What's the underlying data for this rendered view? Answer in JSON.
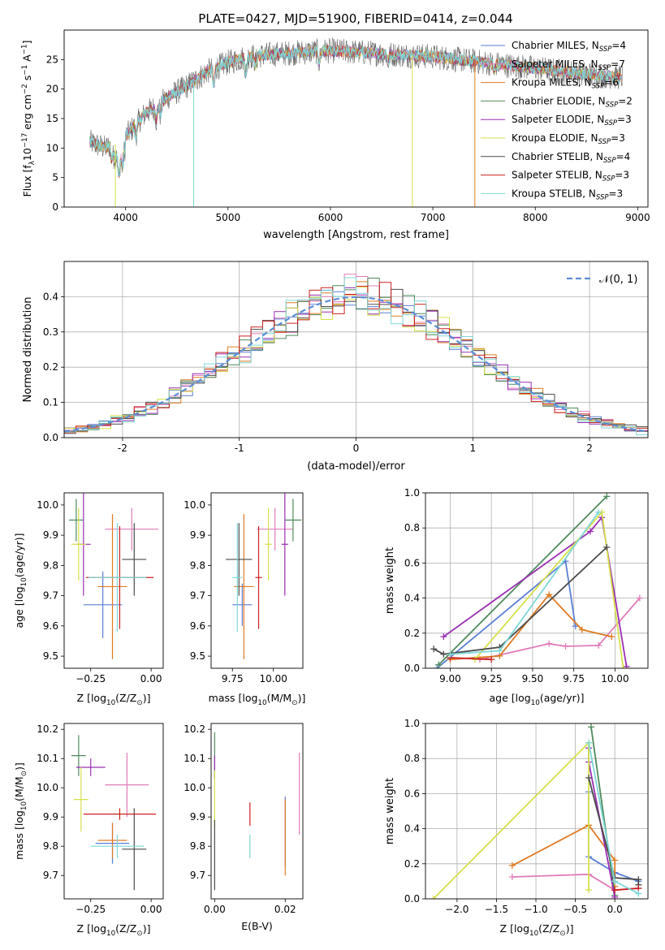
{
  "figure_title": "PLATE=0427, MJD=51900, FIBERID=0414, z=0.044",
  "colors": {
    "Chabrier MILES": "#5b7fd6",
    "Salpeter MILES": "#e07cb8",
    "Kroupa MILES": "#e07a22",
    "Chabrier ELODIE": "#4f8a5c",
    "Salpeter ELODIE": "#9a2fb3",
    "Kroupa ELODIE": "#d5e04a",
    "Chabrier STELIB": "#4a4a4a",
    "Salpeter STELIB": "#cc2020",
    "Kroupa STELIB": "#7fd6d6"
  },
  "chart_data": [
    {
      "id": "spectrum",
      "type": "line",
      "title": "PLATE=0427, MJD=51900, FIBERID=0414, z=0.044",
      "xlabel": "wavelength [Angstrom, rest frame]",
      "ylabel_main": "Flux [f",
      "ylabel_parts": [
        "Flux [f",
        "λ",
        "10",
        "−17",
        " erg cm",
        "−2",
        " s",
        "−1",
        " A",
        "−1",
        "]"
      ],
      "xlim": [
        3400,
        9100
      ],
      "ylim": [
        0,
        30
      ],
      "xticks": [
        4000,
        5000,
        6000,
        7000,
        8000,
        9000
      ],
      "yticks": [
        0,
        5,
        10,
        15,
        20,
        25
      ],
      "legend_position": "upper-right",
      "legend": [
        {
          "name": "Chabrier MILES",
          "n": "4"
        },
        {
          "name": "Salpeter MILES",
          "n": "7"
        },
        {
          "name": "Kroupa MILES",
          "n": "6"
        },
        {
          "name": "Chabrier ELODIE",
          "n": "2"
        },
        {
          "name": "Salpeter ELODIE",
          "n": "3"
        },
        {
          "name": "Kroupa ELODIE",
          "n": "3"
        },
        {
          "name": "Chabrier STELIB",
          "n": "4"
        },
        {
          "name": "Salpeter STELIB",
          "n": "3"
        },
        {
          "name": "Kroupa STELIB",
          "n": "3"
        }
      ],
      "continuum": [
        [
          3650,
          11
        ],
        [
          3800,
          10
        ],
        [
          3950,
          11
        ],
        [
          4050,
          13
        ],
        [
          4200,
          16
        ],
        [
          4300,
          17
        ],
        [
          4400,
          18.5
        ],
        [
          4600,
          20.5
        ],
        [
          4800,
          23
        ],
        [
          5000,
          24.5
        ],
        [
          5200,
          25.5
        ],
        [
          5500,
          26
        ],
        [
          6000,
          26.5
        ],
        [
          6500,
          26
        ],
        [
          7000,
          25.5
        ],
        [
          7500,
          24.5
        ],
        [
          8000,
          23.5
        ],
        [
          8500,
          22.5
        ],
        [
          8850,
          22
        ]
      ],
      "dips": [
        {
          "x": 3900,
          "model": "Kroupa ELODIE",
          "series": 5
        },
        {
          "x": 4665,
          "model": "Kroupa STELIB",
          "series": 8
        },
        {
          "x": 6800,
          "model": "Kroupa ELODIE",
          "series": 5
        },
        {
          "x": 7410,
          "model": "Kroupa MILES",
          "series": 2
        }
      ]
    },
    {
      "id": "residuals",
      "type": "histogram",
      "xlabel": "(data-model)/error",
      "ylabel": "Normed distribution",
      "xlim": [
        -2.5,
        2.5
      ],
      "ylim": [
        0,
        0.5
      ],
      "xticks": [
        -2,
        -1,
        0,
        1,
        2
      ],
      "yticks": [
        0.0,
        0.1,
        0.2,
        0.3,
        0.4
      ],
      "grid": true,
      "reference": {
        "type": "gaussian",
        "mean": 0,
        "sigma": 1,
        "label": "𝒩(0, 1)"
      },
      "bins": 50,
      "legend_position": "upper-right"
    },
    {
      "id": "age-vs-Z",
      "type": "errorbar",
      "xlabel_main": "Z [log",
      "xlabel_sub": "10",
      "xlabel_rest": "(Z/Z",
      "xlabel_sun": "⊙",
      "xlabel_end": ")]",
      "ylabel_main": "age  [log",
      "ylabel_sub": "10",
      "ylabel_rest": "(age/yr)]",
      "xlim": [
        -0.36,
        0.05
      ],
      "ylim": [
        9.46,
        10.04
      ],
      "xticks": [
        -0.25,
        0.0
      ],
      "xticklabels": [
        "−0.25",
        "0.00"
      ],
      "yticks": [
        9.5,
        9.6,
        9.7,
        9.8,
        9.9,
        10.0
      ],
      "points": [
        {
          "model": "Chabrier MILES",
          "x": -0.2,
          "y": 9.67,
          "xerr": 0.08,
          "yerr": 0.11
        },
        {
          "model": "Salpeter MILES",
          "x": -0.08,
          "y": 9.92,
          "xerr": 0.11,
          "yerr": 0.07
        },
        {
          "model": "Kroupa MILES",
          "x": -0.16,
          "y": 9.73,
          "xerr": 0.06,
          "yerr": 0.24
        },
        {
          "model": "Chabrier ELODIE",
          "x": -0.31,
          "y": 9.95,
          "xerr": 0.03,
          "yerr": 0.07
        },
        {
          "model": "Salpeter ELODIE",
          "x": -0.28,
          "y": 9.87,
          "xerr": 0.03,
          "yerr": 0.17
        },
        {
          "model": "Kroupa ELODIE",
          "x": -0.3,
          "y": 9.87,
          "xerr": 0.03,
          "yerr": 0.12
        },
        {
          "model": "Chabrier STELIB",
          "x": -0.07,
          "y": 9.82,
          "xerr": 0.05,
          "yerr": 0.12
        },
        {
          "model": "Salpeter STELIB",
          "x": -0.13,
          "y": 9.76,
          "xerr": 0.14,
          "yerr": 0.17
        },
        {
          "model": "Kroupa STELIB",
          "x": -0.14,
          "y": 9.76,
          "xerr": 0.12,
          "yerr": 0.18
        }
      ]
    },
    {
      "id": "age-vs-mass",
      "type": "errorbar",
      "xlabel_main": "mass [log",
      "xlabel_sub": "10",
      "xlabel_rest": "(M/M",
      "xlabel_sun": "⊙",
      "xlabel_end": ")]",
      "xlim": [
        9.62,
        10.18
      ],
      "ylim": [
        9.46,
        10.04
      ],
      "xticks": [
        9.75,
        10.0
      ],
      "xticklabels": [
        "9.75",
        "10.00"
      ],
      "yticks": [
        9.5,
        9.6,
        9.7,
        9.8,
        9.9,
        10.0
      ],
      "points": [
        {
          "model": "Chabrier MILES",
          "x": 9.81,
          "y": 9.67,
          "xerr": 0.06,
          "yerr": 0.07
        },
        {
          "model": "Salpeter MILES",
          "x": 10.01,
          "y": 9.92,
          "xerr": 0.11,
          "yerr": 0.07
        },
        {
          "model": "Kroupa MILES",
          "x": 9.82,
          "y": 9.73,
          "xerr": 0.06,
          "yerr": 0.24
        },
        {
          "model": "Chabrier ELODIE",
          "x": 10.12,
          "y": 9.95,
          "xerr": 0.05,
          "yerr": 0.07
        },
        {
          "model": "Salpeter ELODIE",
          "x": 10.07,
          "y": 9.87,
          "xerr": 0.02,
          "yerr": 0.17
        },
        {
          "model": "Kroupa ELODIE",
          "x": 9.97,
          "y": 9.87,
          "xerr": 0.02,
          "yerr": 0.12
        },
        {
          "model": "Chabrier STELIB",
          "x": 9.79,
          "y": 9.82,
          "xerr": 0.08,
          "yerr": 0.12
        },
        {
          "model": "Salpeter STELIB",
          "x": 9.91,
          "y": 9.76,
          "xerr": 0.02,
          "yerr": 0.17
        },
        {
          "model": "Kroupa STELIB",
          "x": 9.78,
          "y": 9.76,
          "xerr": 0.03,
          "yerr": 0.18
        }
      ]
    },
    {
      "id": "mass-weight-vs-age",
      "type": "line",
      "xlabel_main": "age  [log",
      "xlabel_sub": "10",
      "xlabel_rest": "(age/yr)]",
      "ylabel": "mass weight",
      "xlim": [
        8.85,
        10.2
      ],
      "ylim": [
        0,
        1.0
      ],
      "xticks": [
        9.0,
        9.25,
        9.5,
        9.75,
        10.0
      ],
      "xticklabels": [
        "9.00",
        "9.25",
        "9.50",
        "9.75",
        "10.00"
      ],
      "yticks": [
        0.0,
        0.2,
        0.4,
        0.6,
        0.8,
        1.0
      ],
      "grid": true,
      "series": [
        {
          "model": "Chabrier MILES",
          "x": [
            8.92,
            9.7,
            9.76
          ],
          "y": [
            0.0,
            0.61,
            0.24
          ]
        },
        {
          "model": "Salpeter MILES",
          "x": [
            9.18,
            9.6,
            9.7,
            9.9,
            10.15
          ],
          "y": [
            0.05,
            0.14,
            0.125,
            0.13,
            0.4
          ]
        },
        {
          "model": "Kroupa MILES",
          "x": [
            9.0,
            9.3,
            9.6,
            9.8,
            9.98
          ],
          "y": [
            0.05,
            0.07,
            0.42,
            0.22,
            0.18
          ]
        },
        {
          "model": "Chabrier ELODIE",
          "x": [
            8.93,
            9.95
          ],
          "y": [
            0.02,
            0.98
          ]
        },
        {
          "model": "Salpeter ELODIE",
          "x": [
            8.96,
            9.85,
            9.92,
            10.07
          ],
          "y": [
            0.18,
            0.78,
            0.86,
            0.01
          ]
        },
        {
          "model": "Kroupa ELODIE",
          "x": [
            9.15,
            9.92,
            10.05
          ],
          "y": [
            0.05,
            0.89,
            0.0
          ]
        },
        {
          "model": "Chabrier STELIB",
          "x": [
            8.9,
            8.96,
            9.3,
            9.95
          ],
          "y": [
            0.11,
            0.08,
            0.12,
            0.69
          ]
        },
        {
          "model": "Salpeter STELIB",
          "x": [
            9.0,
            9.25
          ],
          "y": [
            0.06,
            0.05
          ]
        },
        {
          "model": "Kroupa STELIB",
          "x": [
            9.0,
            9.3,
            9.9
          ],
          "y": [
            0.08,
            0.1,
            0.89
          ]
        }
      ]
    },
    {
      "id": "mass-vs-Z",
      "type": "errorbar",
      "xlabel_main": "Z [log",
      "xlabel_sub": "10",
      "xlabel_rest": "(Z/Z",
      "xlabel_sun": "⊙",
      "xlabel_end": ")]",
      "ylabel_main": "mass [log",
      "ylabel_sub": "10",
      "ylabel_rest": "(M/M",
      "ylabel_sun": "⊙",
      "ylabel_end": ")]",
      "xlim": [
        -0.36,
        0.05
      ],
      "ylim": [
        9.62,
        10.22
      ],
      "xticks": [
        -0.25,
        0.0
      ],
      "xticklabels": [
        "−0.25",
        "0.00"
      ],
      "yticks": [
        9.7,
        9.8,
        9.9,
        10.0,
        10.1,
        10.2
      ],
      "points": [
        {
          "model": "Chabrier MILES",
          "x": -0.16,
          "y": 9.81,
          "xerr": 0.07,
          "yerr": 0.07
        },
        {
          "model": "Salpeter MILES",
          "x": -0.1,
          "y": 10.01,
          "xerr": 0.09,
          "yerr": 0.11
        },
        {
          "model": "Kroupa MILES",
          "x": -0.16,
          "y": 9.82,
          "xerr": 0.06,
          "yerr": 0.06
        },
        {
          "model": "Chabrier ELODIE",
          "x": -0.3,
          "y": 10.11,
          "xerr": 0.03,
          "yerr": 0.07
        },
        {
          "model": "Salpeter ELODIE",
          "x": -0.25,
          "y": 10.07,
          "xerr": 0.06,
          "yerr": 0.03
        },
        {
          "model": "Kroupa ELODIE",
          "x": -0.29,
          "y": 9.96,
          "xerr": 0.03,
          "yerr": 0.11
        },
        {
          "model": "Chabrier STELIB",
          "x": -0.07,
          "y": 9.79,
          "xerr": 0.05,
          "yerr": 0.14
        },
        {
          "model": "Salpeter STELIB",
          "x": -0.13,
          "y": 9.91,
          "xerr": 0.15,
          "yerr": 0.02
        },
        {
          "model": "Kroupa STELIB",
          "x": -0.14,
          "y": 9.8,
          "xerr": 0.11,
          "yerr": 0.04
        }
      ]
    },
    {
      "id": "mass-vs-EBV",
      "type": "errorbar",
      "xlabel": "E(B-V)",
      "xlim": [
        -0.001,
        0.025
      ],
      "ylim": [
        9.62,
        10.22
      ],
      "xticks": [
        0.0,
        0.02
      ],
      "xticklabels": [
        "0.00",
        "0.02"
      ],
      "yticks": [
        9.7,
        9.8,
        9.9,
        10.0,
        10.1,
        10.2
      ],
      "points": [
        {
          "model": "Chabrier MILES",
          "x": 0.02,
          "y": 9.85,
          "xerr": 0,
          "yerr": 0.12
        },
        {
          "model": "Salpeter MILES",
          "x": 0.024,
          "y": 9.98,
          "xerr": 0,
          "yerr": 0.14
        },
        {
          "model": "Kroupa MILES",
          "x": 0.02,
          "y": 9.83,
          "xerr": 0,
          "yerr": 0.13
        },
        {
          "model": "Chabrier ELODIE",
          "x": 0.0,
          "y": 10.11,
          "xerr": 0,
          "yerr": 0.08
        },
        {
          "model": "Salpeter ELODIE",
          "x": 0.0,
          "y": 10.07,
          "xerr": 0,
          "yerr": 0.04
        },
        {
          "model": "Kroupa ELODIE",
          "x": 0.0,
          "y": 9.96,
          "xerr": 0,
          "yerr": 0.1
        },
        {
          "model": "Chabrier STELIB",
          "x": 0.0,
          "y": 9.77,
          "xerr": 0,
          "yerr": 0.12
        },
        {
          "model": "Salpeter STELIB",
          "x": 0.01,
          "y": 9.91,
          "xerr": 0,
          "yerr": 0.04
        },
        {
          "model": "Kroupa STELIB",
          "x": 0.01,
          "y": 9.8,
          "xerr": 0,
          "yerr": 0.04
        }
      ]
    },
    {
      "id": "mass-weight-vs-Z",
      "type": "line",
      "xlabel_main": "Z [log",
      "xlabel_sub": "10",
      "xlabel_rest": "(Z/Z",
      "xlabel_sun": "⊙",
      "xlabel_end": ")]",
      "ylabel": "mass weight",
      "xlim": [
        -2.4,
        0.42
      ],
      "ylim": [
        0,
        1.0
      ],
      "xticks": [
        -2.0,
        -1.5,
        -1.0,
        -0.5,
        0.0
      ],
      "xticklabels": [
        "−2.0",
        "−1.5",
        "−1.0",
        "−0.5",
        "0.0"
      ],
      "yticks": [
        0.0,
        0.2,
        0.4,
        0.6,
        0.8,
        1.0
      ],
      "grid": true,
      "series": [
        {
          "model": "Chabrier MILES",
          "x": [
            -0.33,
            -0.33,
            0.0,
            0.3
          ],
          "y": [
            0.61,
            0.24,
            0.15,
            0.1
          ]
        },
        {
          "model": "Salpeter MILES",
          "x": [
            -1.3,
            -0.33,
            0.0,
            0.3
          ],
          "y": [
            0.125,
            0.14,
            0.05,
            0.06
          ]
        },
        {
          "model": "Kroupa MILES",
          "x": [
            -1.3,
            -0.33,
            0.0,
            0.0
          ],
          "y": [
            0.19,
            0.42,
            0.22,
            0.07
          ]
        },
        {
          "model": "Chabrier ELODIE",
          "x": [
            -0.3,
            0.0
          ],
          "y": [
            0.98,
            0.02
          ]
        },
        {
          "model": "Salpeter ELODIE",
          "x": [
            -0.33,
            -0.33,
            0.0
          ],
          "y": [
            0.86,
            0.78,
            0.01
          ]
        },
        {
          "model": "Kroupa ELODIE",
          "x": [
            -2.3,
            -0.33,
            -0.33
          ],
          "y": [
            0.0,
            0.89,
            0.05
          ]
        },
        {
          "model": "Chabrier STELIB",
          "x": [
            -0.33,
            0.0,
            0.3,
            0.3
          ],
          "y": [
            0.69,
            0.12,
            0.11,
            0.08
          ]
        },
        {
          "model": "Salpeter STELIB",
          "x": [
            0.0,
            0.3
          ],
          "y": [
            0.05,
            0.06
          ]
        },
        {
          "model": "Kroupa STELIB",
          "x": [
            -0.33,
            0.0,
            0.3
          ],
          "y": [
            0.89,
            0.1,
            0.03
          ]
        }
      ]
    }
  ]
}
